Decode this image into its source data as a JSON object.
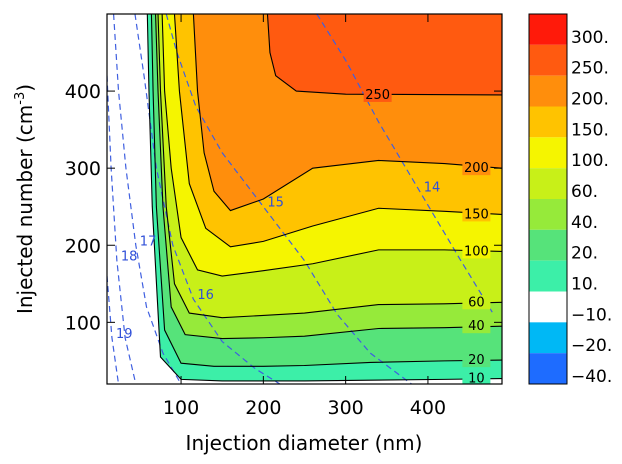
{
  "chart_data": {
    "type": "contour",
    "xlabel": "Injection diameter (nm)",
    "ylabel_main": "Injected number (cm",
    "ylabel_sup": "-3",
    "ylabel_end": ")",
    "xlim": [
      10,
      490
    ],
    "ylim": [
      20,
      500
    ],
    "x_ticks": [
      100,
      200,
      300,
      400
    ],
    "y_ticks": [
      100,
      200,
      300,
      400
    ],
    "filled_levels": [
      -40,
      -20,
      -10,
      10,
      20,
      40,
      60,
      100,
      150,
      200,
      250,
      300
    ],
    "colorbar": {
      "labels": [
        "300.",
        "250.",
        "200.",
        "150.",
        "100.",
        "60.",
        "40.",
        "20.",
        "10.",
        "−10.",
        "−20.",
        "−40."
      ],
      "colors": [
        "#ff1a0a",
        "#ff5a10",
        "#ff8e0c",
        "#ffc300",
        "#f5f500",
        "#c8f018",
        "#96ea3a",
        "#56e37a",
        "#3cefa8",
        "#ffffff",
        "#00b8f5",
        "#1e6cff"
      ]
    },
    "solid_contours": [
      {
        "level": 250,
        "label": "250",
        "points": [
          [
            490,
            395
          ],
          [
            300,
            396
          ],
          [
            240,
            400
          ],
          [
            215,
            420
          ],
          [
            208,
            450
          ],
          [
            205,
            500
          ]
        ]
      },
      {
        "level": 200,
        "label": "200",
        "points": [
          [
            490,
            300
          ],
          [
            420,
            306
          ],
          [
            340,
            310
          ],
          [
            260,
            300
          ],
          [
            200,
            260
          ],
          [
            160,
            245
          ],
          [
            140,
            270
          ],
          [
            128,
            320
          ],
          [
            120,
            400
          ],
          [
            115,
            500
          ]
        ]
      },
      {
        "level": 150,
        "label": "150",
        "points": [
          [
            490,
            240
          ],
          [
            420,
            244
          ],
          [
            340,
            248
          ],
          [
            260,
            225
          ],
          [
            200,
            205
          ],
          [
            160,
            198
          ],
          [
            130,
            222
          ],
          [
            110,
            280
          ],
          [
            98,
            400
          ],
          [
            92,
            500
          ]
        ]
      },
      {
        "level": 100,
        "label": "100",
        "points": [
          [
            490,
            192
          ],
          [
            420,
            194
          ],
          [
            340,
            194
          ],
          [
            260,
            176
          ],
          [
            200,
            167
          ],
          [
            150,
            160
          ],
          [
            120,
            168
          ],
          [
            100,
            210
          ],
          [
            88,
            300
          ],
          [
            80,
            400
          ],
          [
            77,
            500
          ]
        ]
      },
      {
        "level": 60,
        "label": "60",
        "points": [
          [
            490,
            126
          ],
          [
            420,
            124
          ],
          [
            340,
            123
          ],
          [
            250,
            112
          ],
          [
            200,
            109
          ],
          [
            150,
            106
          ],
          [
            110,
            112
          ],
          [
            92,
            150
          ],
          [
            82,
            250
          ],
          [
            75,
            400
          ],
          [
            72,
            500
          ]
        ]
      },
      {
        "level": 40,
        "label": "40",
        "points": [
          [
            490,
            95
          ],
          [
            420,
            93
          ],
          [
            340,
            92
          ],
          [
            250,
            82
          ],
          [
            200,
            80
          ],
          [
            150,
            79
          ],
          [
            105,
            84
          ],
          [
            88,
            120
          ],
          [
            78,
            250
          ],
          [
            72,
            400
          ],
          [
            69,
            500
          ]
        ]
      },
      {
        "level": 20,
        "label": "20",
        "points": [
          [
            490,
            51
          ],
          [
            420,
            50
          ],
          [
            330,
            48
          ],
          [
            250,
            44
          ],
          [
            200,
            43
          ],
          [
            140,
            43
          ],
          [
            100,
            47
          ],
          [
            80,
            90
          ],
          [
            70,
            250
          ],
          [
            66,
            400
          ],
          [
            64,
            500
          ]
        ]
      },
      {
        "level": 10,
        "label": "10",
        "points": [
          [
            490,
            27
          ],
          [
            420,
            26
          ],
          [
            330,
            25
          ],
          [
            250,
            24
          ],
          [
            150,
            24
          ],
          [
            100,
            26
          ],
          [
            75,
            55
          ],
          [
            65,
            250
          ],
          [
            61,
            400
          ],
          [
            59,
            500
          ]
        ]
      }
    ],
    "dashed_contours": [
      {
        "level": 14,
        "label": "14",
        "points": [
          [
            265,
            500
          ],
          [
            300,
            440
          ],
          [
            340,
            360
          ],
          [
            390,
            270
          ],
          [
            440,
            180
          ],
          [
            480,
            110
          ]
        ]
      },
      {
        "level": 15,
        "label": "15",
        "points": [
          [
            82,
            500
          ],
          [
            95,
            450
          ],
          [
            118,
            380
          ],
          [
            150,
            320
          ],
          [
            200,
            250
          ],
          [
            250,
            180
          ],
          [
            290,
            110
          ],
          [
            330,
            60
          ],
          [
            380,
            20
          ]
        ]
      },
      {
        "level": 16,
        "label": "16",
        "points": [
          [
            44,
            500
          ],
          [
            55,
            420
          ],
          [
            70,
            300
          ],
          [
            90,
            200
          ],
          [
            115,
            130
          ],
          [
            150,
            75
          ],
          [
            190,
            40
          ],
          [
            220,
            20
          ]
        ]
      },
      {
        "level": 17,
        "label": "17",
        "points": [
          [
            18,
            500
          ],
          [
            24,
            400
          ],
          [
            33,
            300
          ],
          [
            45,
            200
          ],
          [
            58,
            120
          ],
          [
            78,
            60
          ],
          [
            100,
            20
          ]
        ]
      },
      {
        "level": 18,
        "label": "18",
        "points": [
          [
            10,
            420
          ],
          [
            15,
            300
          ],
          [
            22,
            180
          ],
          [
            32,
            80
          ],
          [
            45,
            20
          ]
        ]
      },
      {
        "level": 19,
        "label": "19",
        "points": [
          [
            10,
            160
          ],
          [
            16,
            80
          ],
          [
            24,
            20
          ]
        ]
      }
    ]
  }
}
